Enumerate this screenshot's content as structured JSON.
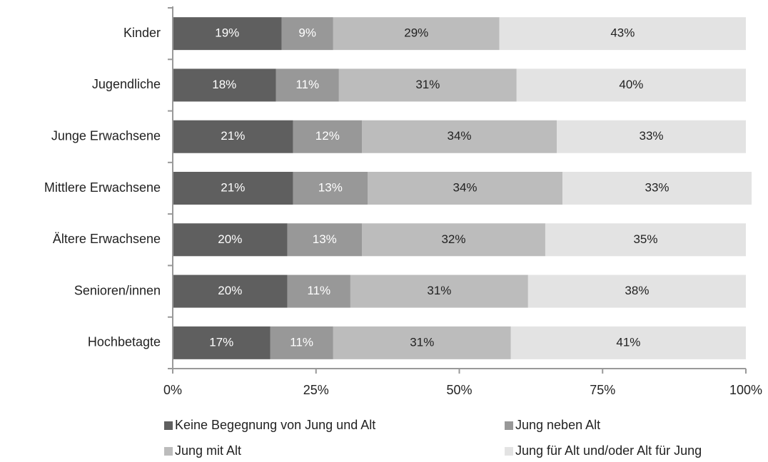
{
  "chart_data": {
    "type": "stacked_barh",
    "categories": [
      "Kinder",
      "Jugendliche",
      "Junge Erwachsene",
      "Mittlere Erwachsene",
      "Ältere Erwachsene",
      "Senioren/innen",
      "Hochbetagte"
    ],
    "series": [
      {
        "name": "Keine Begegnung von Jung und Alt",
        "color": "#5f5f5f",
        "values": [
          19,
          18,
          21,
          21,
          20,
          20,
          17
        ],
        "value_labels": [
          "19%",
          "18%",
          "21%",
          "21%",
          "20%",
          "20%",
          "17%"
        ]
      },
      {
        "name": "Jung neben Alt",
        "color": "#989898",
        "values": [
          9,
          11,
          12,
          13,
          13,
          11,
          11
        ],
        "value_labels": [
          "9%",
          "11%",
          "12%",
          "13%",
          "13%",
          "11%",
          "11%"
        ]
      },
      {
        "name": "Jung mit Alt",
        "color": "#bcbcbc",
        "values": [
          29,
          31,
          34,
          34,
          32,
          31,
          31
        ],
        "value_labels": [
          "29%",
          "31%",
          "34%",
          "34%",
          "32%",
          "31%",
          "31%"
        ]
      },
      {
        "name": "Jung für Alt und/oder Alt für Jung",
        "color": "#e3e3e3",
        "values": [
          43,
          40,
          33,
          33,
          35,
          38,
          41
        ],
        "value_labels": [
          "43%",
          "40%",
          "33%",
          "33%",
          "35%",
          "38%",
          "41%"
        ]
      }
    ],
    "xlim": [
      0,
      100
    ],
    "xticks": [
      {
        "value": 0,
        "label": "0%"
      },
      {
        "value": 25,
        "label": "25%"
      },
      {
        "value": 50,
        "label": "50%"
      },
      {
        "value": 75,
        "label": "75%"
      },
      {
        "value": 100,
        "label": "100%"
      }
    ]
  }
}
